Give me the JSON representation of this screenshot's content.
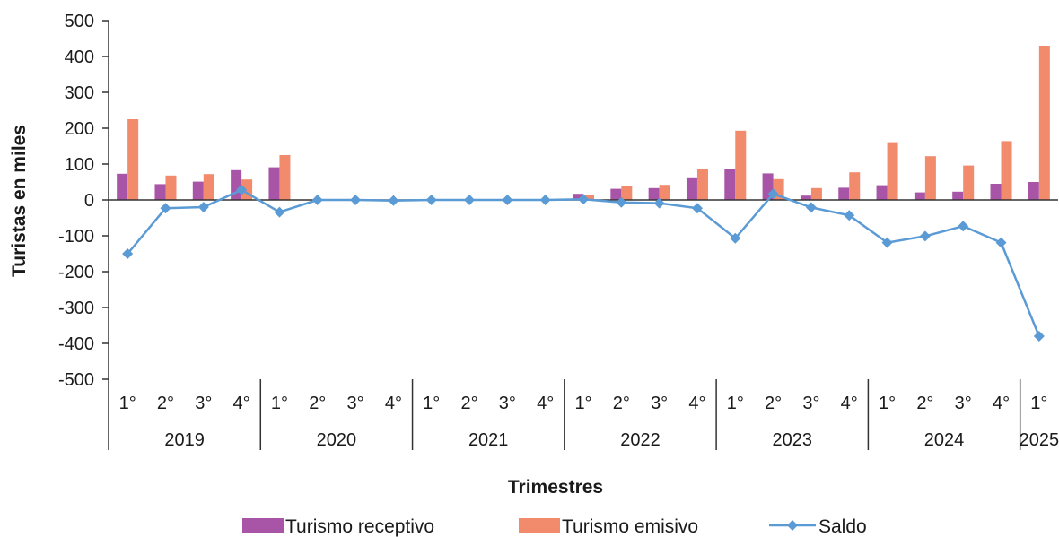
{
  "chart_data": {
    "type": "bar",
    "title": "",
    "xlabel": "Trimestres",
    "ylabel": "Turistas en miles",
    "ylim": [
      -500,
      500
    ],
    "y_ticks": [
      500,
      400,
      300,
      200,
      100,
      0,
      -100,
      -200,
      -300,
      -400,
      -500
    ],
    "categories": [
      "1°",
      "2°",
      "3°",
      "4°",
      "1°",
      "2°",
      "3°",
      "4°",
      "1°",
      "2°",
      "3°",
      "4°",
      "1°",
      "2°",
      "3°",
      "4°",
      "1°",
      "2°",
      "3°",
      "4°",
      "1°",
      "2°",
      "3°",
      "4°",
      "1°"
    ],
    "groups": [
      {
        "label": "2019",
        "count": 4
      },
      {
        "label": "2020",
        "count": 4
      },
      {
        "label": "2021",
        "count": 4
      },
      {
        "label": "2022",
        "count": 4
      },
      {
        "label": "2023",
        "count": 4
      },
      {
        "label": "2024",
        "count": 4
      },
      {
        "label": "2025",
        "count": 1
      }
    ],
    "series": [
      {
        "name": "Turismo receptivo",
        "type": "bar",
        "color": "#a855a8",
        "values": [
          73,
          44,
          51,
          83,
          91,
          0,
          0,
          0,
          0,
          0,
          0,
          0,
          17,
          31,
          33,
          63,
          86,
          74,
          12,
          34,
          41,
          21,
          23,
          45,
          50
        ]
      },
      {
        "name": "Turismo emisivo",
        "type": "bar",
        "color": "#f28a6c",
        "values": [
          225,
          68,
          72,
          57,
          125,
          0,
          0,
          0,
          0,
          0,
          0,
          0,
          14,
          38,
          42,
          87,
          193,
          58,
          33,
          77,
          161,
          122,
          96,
          164,
          430
        ]
      },
      {
        "name": "Saldo",
        "type": "line",
        "color": "#5b9bd5",
        "values": [
          -150,
          -23,
          -20,
          28,
          -34,
          0,
          0,
          -2,
          0,
          0,
          0,
          0,
          2,
          -7,
          -9,
          -23,
          -107,
          17,
          -21,
          -43,
          -119,
          -101,
          -73,
          -119,
          -380
        ]
      }
    ],
    "legend": {
      "position": "bottom"
    },
    "grid": false
  }
}
